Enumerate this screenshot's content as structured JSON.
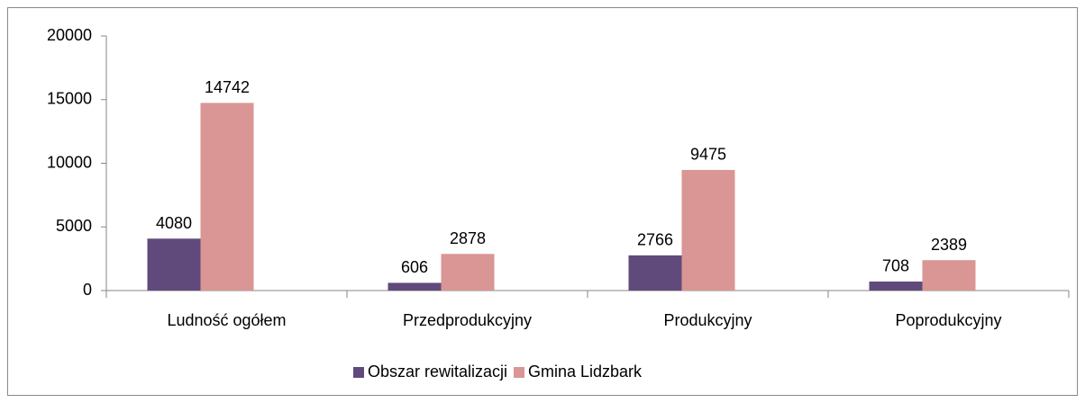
{
  "chart_data": {
    "type": "bar",
    "categories": [
      "Ludność ogółem",
      "Przedprodukcyjny",
      "Produkcyjny",
      "Poprodukcyjny"
    ],
    "series": [
      {
        "name": "Obszar rewitalizacji",
        "color": "#604a7b",
        "values": [
          4080,
          606,
          2766,
          708
        ]
      },
      {
        "name": "Gmina Lidzbark",
        "color": "#d99694",
        "values": [
          14742,
          2878,
          9475,
          2389
        ]
      }
    ],
    "ylim": [
      0,
      20000
    ],
    "yticks": [
      0,
      5000,
      10000,
      15000,
      20000
    ],
    "grid": false,
    "legend": "bottom"
  }
}
